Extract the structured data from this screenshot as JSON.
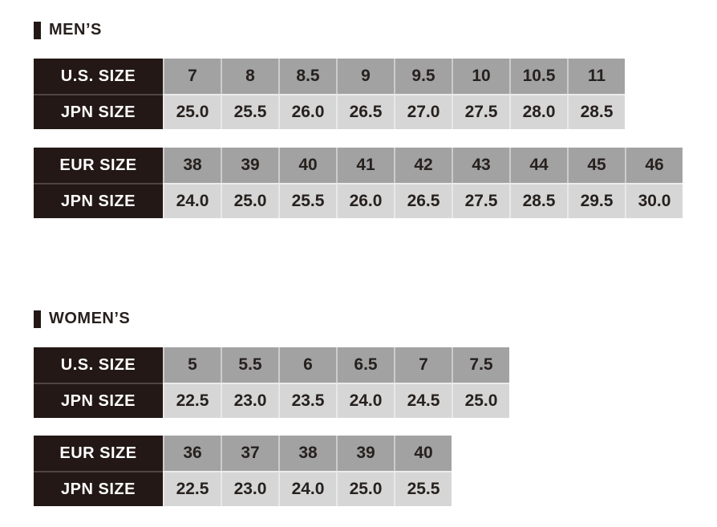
{
  "colors": {
    "label_bg": "#231815",
    "header_bg": "#a2a2a3",
    "data_bg": "#d6d6d7",
    "text_dark": "#27211e",
    "text_light": "#ffffff"
  },
  "sections": [
    {
      "title": "MEN’S",
      "tables": [
        {
          "name": "us-to-jpn",
          "rows": [
            {
              "label": "U.S. SIZE",
              "values": [
                "7",
                "8",
                "8.5",
                "9",
                "9.5",
                "10",
                "10.5",
                "11"
              ]
            },
            {
              "label": "JPN SIZE",
              "values": [
                "25.0",
                "25.5",
                "26.0",
                "26.5",
                "27.0",
                "27.5",
                "28.0",
                "28.5"
              ]
            }
          ]
        },
        {
          "name": "eur-to-jpn",
          "rows": [
            {
              "label": "EUR SIZE",
              "values": [
                "38",
                "39",
                "40",
                "41",
                "42",
                "43",
                "44",
                "45",
                "46"
              ]
            },
            {
              "label": "JPN SIZE",
              "values": [
                "24.0",
                "25.0",
                "25.5",
                "26.0",
                "26.5",
                "27.5",
                "28.5",
                "29.5",
                "30.0"
              ]
            }
          ]
        }
      ]
    },
    {
      "title": "WOMEN’S",
      "tables": [
        {
          "name": "us-to-jpn",
          "rows": [
            {
              "label": "U.S. SIZE",
              "values": [
                "5",
                "5.5",
                "6",
                "6.5",
                "7",
                "7.5"
              ]
            },
            {
              "label": "JPN SIZE",
              "values": [
                "22.5",
                "23.0",
                "23.5",
                "24.0",
                "24.5",
                "25.0"
              ]
            }
          ]
        },
        {
          "name": "eur-to-jpn",
          "rows": [
            {
              "label": "EUR SIZE",
              "values": [
                "36",
                "37",
                "38",
                "39",
                "40"
              ]
            },
            {
              "label": "JPN SIZE",
              "values": [
                "22.5",
                "23.0",
                "24.0",
                "25.0",
                "25.5"
              ]
            }
          ]
        }
      ]
    }
  ]
}
